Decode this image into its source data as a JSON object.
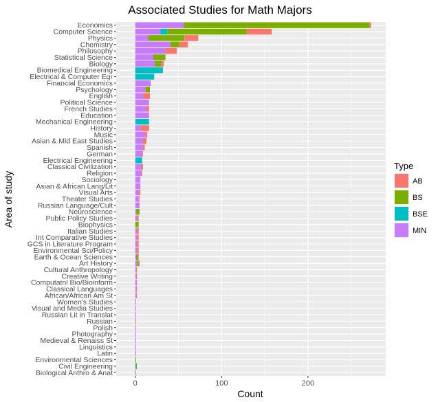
{
  "chart_data": {
    "type": "bar",
    "orientation": "horizontal",
    "stacked": true,
    "title": "Associated Studies for Math Majors",
    "xlabel": "Count",
    "ylabel": "Area of study",
    "xlim": [
      -22,
      290
    ],
    "xticks": [
      0,
      100,
      200
    ],
    "grid": true,
    "legend": {
      "title": "Type",
      "position": "right"
    },
    "colors": {
      "AB": "#F8766D",
      "BS": "#7CAE00",
      "BSE": "#00BFC4",
      "MIN": "#C77CFF"
    },
    "stack_order": [
      "MIN",
      "BSE",
      "BS",
      "AB"
    ],
    "categories": [
      "Economics",
      "Computer Science",
      "Physics",
      "Chemistry",
      "Philosophy",
      "Statistical Science",
      "Biology",
      "Biomedical Engineering",
      "Electrical & Computer Egr",
      "Financial Economics",
      "Psychology",
      "English",
      "Political Science",
      "French Studies",
      "Education",
      "Mechanical Engineering",
      "History",
      "Music",
      "Asian & Mid East Studies",
      "Spanish",
      "German",
      "Electrical Engineering",
      "Classical Civilization",
      "Religion",
      "Sociology",
      "Asian & African Lang/Lit",
      "Visual Arts",
      "Theater Studies",
      "Russian Language/Cult",
      "Neuroscience",
      "Public Policy Studies",
      "Biophysics",
      "Italian Studies",
      "Int Comparative Studies",
      "GCS in Literature Program",
      "Environmental Sci/Policy",
      "Earth & Ocean Sciences",
      "Art History",
      "Cultural Anthropology",
      "Creative Writing",
      "Computatnl Bio/Bioinform",
      "Classical Languages",
      "African/African Am St",
      "Women's Studies",
      "Visual and Media Studies",
      "Russian Lit in Translat",
      "Russian",
      "Polish",
      "Photography",
      "Medieval & Renaiss St",
      "Linguistics",
      "Latin",
      "Environmental Sciences",
      "Civil Engineering",
      "Biological Anthro & Anat"
    ],
    "series": [
      {
        "name": "AB",
        "values": [
          2,
          29,
          16,
          10,
          13,
          0,
          3,
          0,
          0,
          0,
          0,
          8,
          0,
          3,
          0,
          0,
          10,
          2,
          4,
          2,
          1,
          0,
          2,
          1,
          0,
          0,
          2,
          1,
          0,
          0,
          2,
          0,
          2,
          2,
          2,
          2,
          1,
          1,
          1,
          1,
          0,
          1,
          1,
          0,
          0,
          0,
          1,
          0,
          0,
          0,
          0,
          0,
          0,
          0,
          0
        ]
      },
      {
        "name": "BS",
        "values": [
          215,
          92,
          42,
          10,
          0,
          14,
          7,
          0,
          0,
          0,
          5,
          0,
          0,
          0,
          0,
          0,
          0,
          0,
          0,
          0,
          0,
          0,
          0,
          0,
          0,
          0,
          0,
          0,
          0,
          4,
          0,
          4,
          0,
          0,
          0,
          0,
          2,
          2,
          0,
          0,
          0,
          0,
          0,
          0,
          0,
          0,
          0,
          0,
          0,
          0,
          0,
          0,
          1,
          1,
          0
        ]
      },
      {
        "name": "BSE",
        "values": [
          0,
          8,
          0,
          0,
          0,
          0,
          0,
          32,
          22,
          0,
          0,
          0,
          0,
          0,
          0,
          16,
          0,
          0,
          0,
          0,
          0,
          8,
          0,
          0,
          0,
          0,
          0,
          0,
          0,
          0,
          0,
          0,
          0,
          0,
          0,
          0,
          0,
          0,
          0,
          0,
          0,
          0,
          0,
          0,
          0,
          0,
          0,
          0,
          0,
          0,
          0,
          0,
          0,
          1,
          0
        ]
      },
      {
        "name": "MIN",
        "values": [
          56,
          29,
          15,
          41,
          35,
          21,
          23,
          0,
          0,
          18,
          12,
          9,
          16,
          13,
          16,
          0,
          6,
          12,
          9,
          9,
          8,
          0,
          7,
          7,
          6,
          6,
          4,
          4,
          5,
          1,
          2,
          0,
          2,
          2,
          2,
          2,
          1,
          2,
          1,
          1,
          2,
          1,
          1,
          1,
          1,
          1,
          0,
          1,
          1,
          1,
          1,
          1,
          0,
          0,
          1
        ]
      }
    ]
  }
}
